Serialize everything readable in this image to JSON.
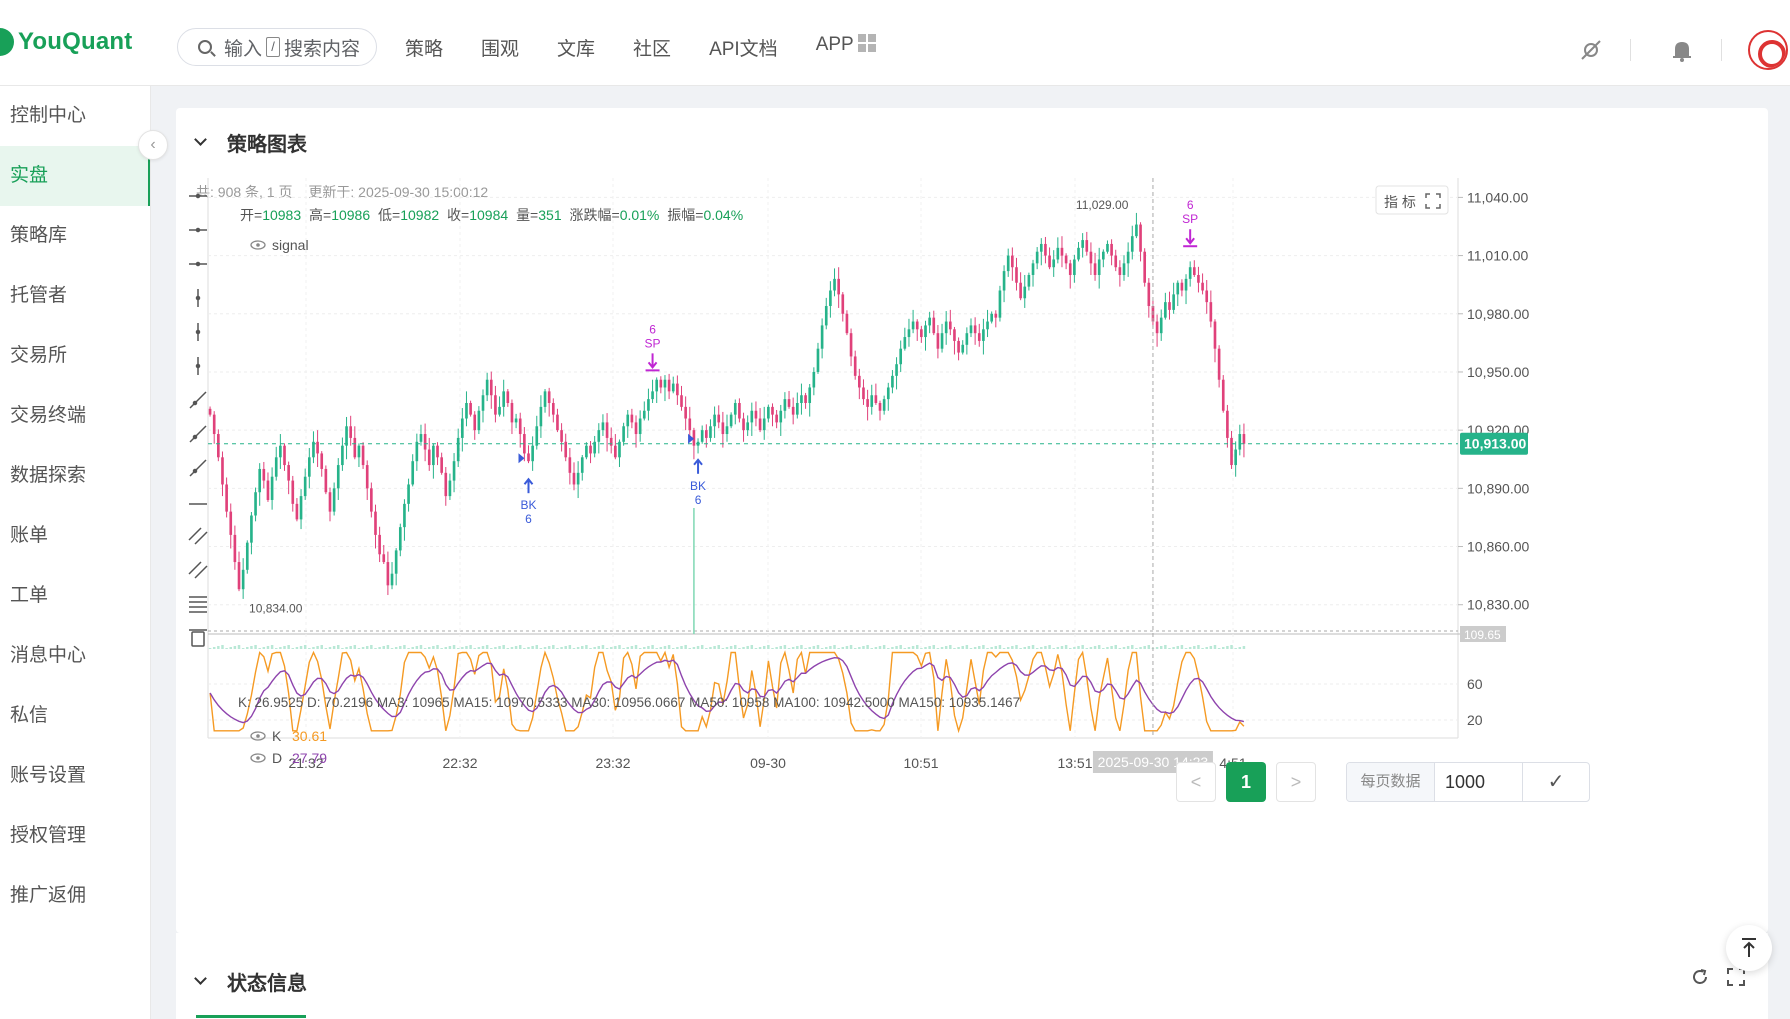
{
  "header": {
    "logo": "YouQuant",
    "search_placeholder_a": "输入",
    "search_slash": "/",
    "search_placeholder_b": "搜索内容",
    "nav": [
      "策略",
      "围观",
      "文库",
      "社区",
      "API文档",
      "APP"
    ]
  },
  "sidebar": {
    "items": [
      "控制中心",
      "实盘",
      "策略库",
      "托管者",
      "交易所",
      "交易终端",
      "数据探索",
      "账单",
      "工单",
      "消息中心",
      "私信",
      "账号设置",
      "授权管理",
      "推广返佣"
    ],
    "active_index": 1,
    "collapse_glyph": "‹"
  },
  "card": {
    "title": "策略图表",
    "meta_count": "共: 908 条, 1 页",
    "meta_updated": "更新于: 2025-09-30 15:00:12",
    "indicator_btn": "指 标"
  },
  "chart_data": {
    "type": "candlestick",
    "ohlc_legend": [
      {
        "label": "开=",
        "value": "10983"
      },
      {
        "label": "高=",
        "value": "10986"
      },
      {
        "label": "低=",
        "value": "10982"
      },
      {
        "label": "收=",
        "value": "10984"
      },
      {
        "label": "量=",
        "value": "351"
      },
      {
        "label": "涨跌幅=",
        "value": "0.01%"
      },
      {
        "label": "振幅=",
        "value": "0.04%"
      }
    ],
    "signal_label": "signal",
    "price_ticks": [
      "11,040.00",
      "11,010.00",
      "10,980.00",
      "10,950.00",
      "10,920.00",
      "10,890.00",
      "10,860.00",
      "10,830.00"
    ],
    "price_tick_values": [
      11040,
      11010,
      10980,
      10950,
      10920,
      10890,
      10860,
      10830
    ],
    "price_range": [
      10818,
      11050
    ],
    "last_price": "10,913.00",
    "last_price_value": 10913,
    "high_label": "11,029.00",
    "low_label": "10,834.00",
    "volume_axis_label": "109.65",
    "ma_line": "K: 26.9525 D: 70.2196 MA3: 10965 MA15: 10970.5333 MA30: 10956.0667 MA50: 10958 MA100: 10942.5000 MA150: 10935.1467",
    "kd_legend": [
      {
        "name": "K",
        "value": "30.61",
        "color": "#f59a23"
      },
      {
        "name": "D",
        "value": "27.79",
        "color": "#8e44ad"
      }
    ],
    "kd_ticks": [
      "60",
      "20"
    ],
    "kd_tick_values": [
      60,
      20
    ],
    "x_ticks": [
      "21:32",
      "22:32",
      "23:32",
      "09-30",
      "10:51",
      "13:51",
      "4:51"
    ],
    "crosshair_label": "2025-09-30 14:23",
    "signals": [
      {
        "kind": "BK",
        "count": "6",
        "bar_index": 77
      },
      {
        "kind": "SP",
        "count": "6",
        "bar_index": 107
      },
      {
        "kind": "BK",
        "count": "6",
        "bar_index": 118
      },
      {
        "kind": "SP",
        "count": "6",
        "bar_index": 237
      }
    ],
    "closes": [
      10928,
      10918,
      10906,
      10892,
      10878,
      10866,
      10852,
      10838,
      10848,
      10862,
      10876,
      10888,
      10900,
      10894,
      10884,
      10896,
      10906,
      10912,
      10902,
      10894,
      10882,
      10874,
      10886,
      10896,
      10906,
      10914,
      10908,
      10900,
      10888,
      10878,
      10890,
      10902,
      10912,
      10922,
      10916,
      10906,
      10912,
      10902,
      10890,
      10878,
      10866,
      10856,
      10852,
      10840,
      10846,
      10858,
      10870,
      10882,
      10892,
      10904,
      10914,
      10918,
      10910,
      10902,
      10912,
      10906,
      10898,
      10886,
      10894,
      10904,
      10916,
      10926,
      10934,
      10928,
      10920,
      10930,
      10938,
      10946,
      10938,
      10928,
      10932,
      10940,
      10934,
      10924,
      10926,
      10918,
      10908,
      10904,
      10912,
      10922,
      10932,
      10940,
      10934,
      10928,
      10920,
      10914,
      10906,
      10898,
      10892,
      10898,
      10906,
      10912,
      10908,
      10914,
      10920,
      10924,
      10916,
      10912,
      10906,
      10914,
      10922,
      10928,
      10924,
      10918,
      10926,
      10930,
      10936,
      10940,
      10946,
      10942,
      10946,
      10940,
      10944,
      10938,
      10932,
      10926,
      10920,
      10912,
      10914,
      10920,
      10916,
      10922,
      10928,
      10924,
      10918,
      10922,
      10928,
      10934,
      10926,
      10920,
      10924,
      10930,
      10926,
      10920,
      10926,
      10932,
      10928,
      10924,
      10930,
      10936,
      10932,
      10928,
      10934,
      10938,
      10934,
      10942,
      10950,
      10962,
      10974,
      10984,
      10992,
      10998,
      10990,
      10980,
      10970,
      10958,
      10948,
      10942,
      10936,
      10932,
      10938,
      10934,
      10930,
      10936,
      10942,
      10948,
      10954,
      10962,
      10968,
      10972,
      10976,
      10972,
      10968,
      10974,
      10978,
      10970,
      10962,
      10970,
      10976,
      10972,
      10966,
      10960,
      10964,
      10970,
      10974,
      10970,
      10966,
      10972,
      10976,
      10980,
      10978,
      10992,
      11002,
      11010,
      11004,
      10996,
      10988,
      10994,
      11000,
      11006,
      11012,
      11016,
      11010,
      11004,
      11008,
      11014,
      11010,
      11006,
      11000,
      11008,
      11014,
      11018,
      11012,
      11006,
      11000,
      11008,
      11012,
      11016,
      11010,
      11004,
      11000,
      11006,
      11012,
      11020,
      11026,
      11012,
      10996,
      10984,
      10976,
      10970,
      10978,
      10986,
      10982,
      10990,
      10996,
      10992,
      10998,
      11004,
      11000,
      10996,
      10992,
      10986,
      10976,
      10962,
      10946,
      10930,
      10916,
      10902,
      10910,
      10918,
      10913
    ]
  },
  "pagination": {
    "prev": "<",
    "current": "1",
    "next": ">",
    "per_page_label": "每页数据",
    "per_page_value": "1000",
    "confirm": "✓"
  },
  "card2": {
    "title": "状态信息"
  }
}
